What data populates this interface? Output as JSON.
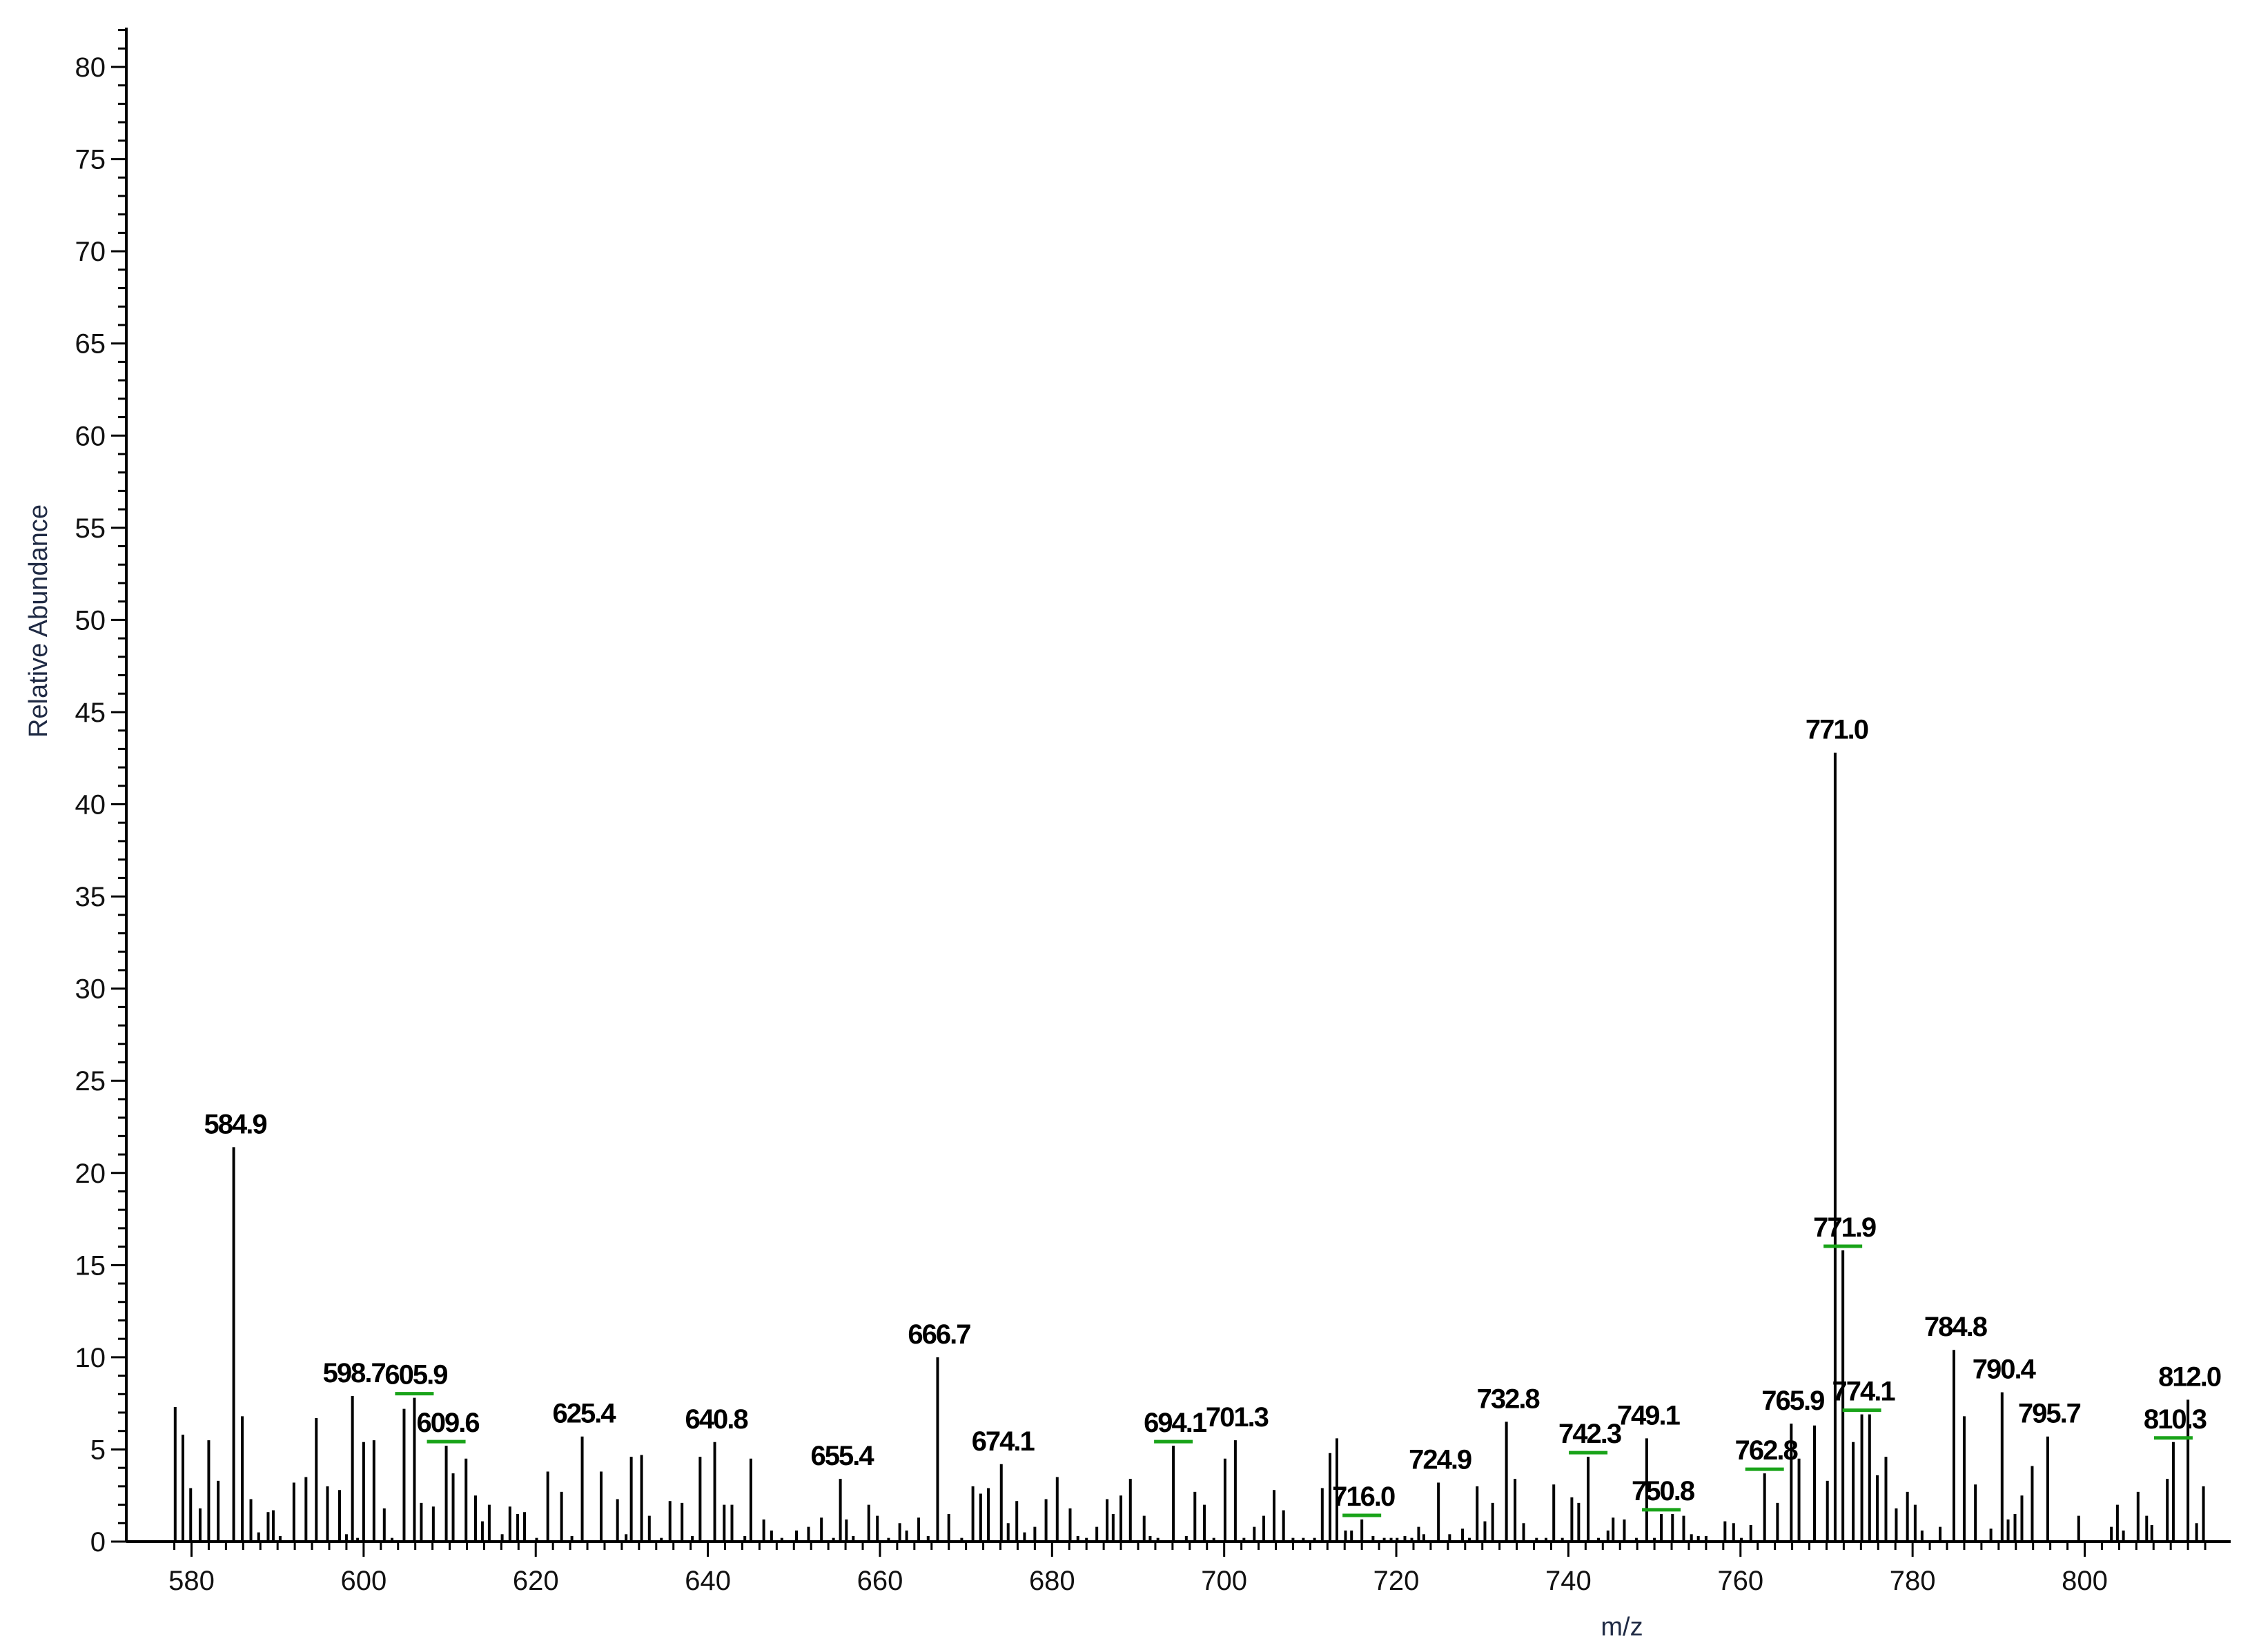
{
  "chart_data": {
    "type": "bar",
    "xlabel": "m/z",
    "ylabel": "Relative Abundance",
    "xlim": [
      577.5,
      815
    ],
    "ylim": [
      0,
      82
    ],
    "x_ticks": [
      580,
      600,
      620,
      640,
      660,
      680,
      700,
      720,
      740,
      760,
      780,
      800
    ],
    "x_tick_labels": [
      "580",
      "600",
      "620",
      "640",
      "660",
      "680",
      "700",
      "720",
      "740",
      "760",
      "780",
      "800"
    ],
    "y_ticks": [
      0,
      5,
      10,
      15,
      20,
      25,
      30,
      35,
      40,
      45,
      50,
      55,
      60,
      65,
      70,
      75,
      80
    ],
    "y_tick_labels": [
      "0",
      "5",
      "10",
      "15",
      "20",
      "25",
      "30",
      "35",
      "40",
      "45",
      "50",
      "55",
      "60",
      "65",
      "70",
      "75",
      "80"
    ],
    "labeled_peaks": [
      {
        "mz": 584.9,
        "abundance": 21.4,
        "label": "584.9",
        "marker": false
      },
      {
        "mz": 598.7,
        "abundance": 7.9,
        "label": "598.7",
        "marker": false
      },
      {
        "mz": 605.9,
        "abundance": 7.8,
        "label": "605.9",
        "marker": true
      },
      {
        "mz": 609.6,
        "abundance": 5.2,
        "label": "609.6",
        "marker": true
      },
      {
        "mz": 625.4,
        "abundance": 5.7,
        "label": "625.4",
        "marker": false
      },
      {
        "mz": 640.8,
        "abundance": 5.4,
        "label": "640.8",
        "marker": false
      },
      {
        "mz": 655.4,
        "abundance": 3.4,
        "label": "655.4",
        "marker": false
      },
      {
        "mz": 666.7,
        "abundance": 10.0,
        "label": "666.7",
        "marker": false
      },
      {
        "mz": 674.1,
        "abundance": 4.2,
        "label": "674.1",
        "marker": false
      },
      {
        "mz": 694.1,
        "abundance": 5.2,
        "label": "694.1",
        "marker": true
      },
      {
        "mz": 701.3,
        "abundance": 5.5,
        "label": "701.3",
        "marker": false
      },
      {
        "mz": 716.0,
        "abundance": 1.2,
        "label": "716.0",
        "marker": true
      },
      {
        "mz": 724.9,
        "abundance": 3.2,
        "label": "724.9",
        "marker": false
      },
      {
        "mz": 732.8,
        "abundance": 6.5,
        "label": "732.8",
        "marker": false
      },
      {
        "mz": 742.3,
        "abundance": 4.6,
        "label": "742.3",
        "marker": true
      },
      {
        "mz": 749.1,
        "abundance": 5.6,
        "label": "749.1",
        "marker": false
      },
      {
        "mz": 750.8,
        "abundance": 1.5,
        "label": "750.8",
        "marker": true
      },
      {
        "mz": 762.8,
        "abundance": 3.7,
        "label": "762.8",
        "marker": true
      },
      {
        "mz": 765.9,
        "abundance": 6.4,
        "label": "765.9",
        "marker": false
      },
      {
        "mz": 771.0,
        "abundance": 42.8,
        "label": "771.0",
        "marker": false
      },
      {
        "mz": 771.9,
        "abundance": 15.8,
        "label": "771.9",
        "marker": true
      },
      {
        "mz": 774.1,
        "abundance": 6.9,
        "label": "774.1",
        "marker": true
      },
      {
        "mz": 784.8,
        "abundance": 10.4,
        "label": "784.8",
        "marker": false
      },
      {
        "mz": 790.4,
        "abundance": 8.1,
        "label": "790.4",
        "marker": false
      },
      {
        "mz": 795.7,
        "abundance": 5.7,
        "label": "795.7",
        "marker": false
      },
      {
        "mz": 810.3,
        "abundance": 5.4,
        "label": "810.3",
        "marker": true
      },
      {
        "mz": 812.0,
        "abundance": 7.7,
        "label": "812.0",
        "marker": false
      }
    ],
    "peaks": [
      [
        578.1,
        7.3
      ],
      [
        579.0,
        5.8
      ],
      [
        579.9,
        2.9
      ],
      [
        581.0,
        1.8
      ],
      [
        582.0,
        5.5
      ],
      [
        583.1,
        3.3
      ],
      [
        585.9,
        6.8
      ],
      [
        586.9,
        2.3
      ],
      [
        587.8,
        0.5
      ],
      [
        588.9,
        1.6
      ],
      [
        589.5,
        1.7
      ],
      [
        590.3,
        0.3
      ],
      [
        591.9,
        3.2
      ],
      [
        593.3,
        3.5
      ],
      [
        594.5,
        6.7
      ],
      [
        595.8,
        3.0
      ],
      [
        597.2,
        2.8
      ],
      [
        598.0,
        0.4
      ],
      [
        599.3,
        0.2
      ],
      [
        600.0,
        5.4
      ],
      [
        601.2,
        5.5
      ],
      [
        602.4,
        1.8
      ],
      [
        603.3,
        0.2
      ],
      [
        604.7,
        7.2
      ],
      [
        606.7,
        2.1
      ],
      [
        608.1,
        1.9
      ],
      [
        610.4,
        3.7
      ],
      [
        611.9,
        4.5
      ],
      [
        613.0,
        2.5
      ],
      [
        613.8,
        1.1
      ],
      [
        614.6,
        2.0
      ],
      [
        616.1,
        0.4
      ],
      [
        617.0,
        1.9
      ],
      [
        617.9,
        1.5
      ],
      [
        618.7,
        1.6
      ],
      [
        620.1,
        0.2
      ],
      [
        621.4,
        3.8
      ],
      [
        623.0,
        2.7
      ],
      [
        624.2,
        0.3
      ],
      [
        627.6,
        3.8
      ],
      [
        629.5,
        2.3
      ],
      [
        630.5,
        0.4
      ],
      [
        631.1,
        4.6
      ],
      [
        632.3,
        4.7
      ],
      [
        633.2,
        1.4
      ],
      [
        634.6,
        0.2
      ],
      [
        635.6,
        2.2
      ],
      [
        637.0,
        2.1
      ],
      [
        638.2,
        0.3
      ],
      [
        639.1,
        4.6
      ],
      [
        641.9,
        2.0
      ],
      [
        642.8,
        2.0
      ],
      [
        644.3,
        0.3
      ],
      [
        645.0,
        4.5
      ],
      [
        646.5,
        1.2
      ],
      [
        647.4,
        0.6
      ],
      [
        648.6,
        0.2
      ],
      [
        650.3,
        0.6
      ],
      [
        651.7,
        0.8
      ],
      [
        653.2,
        1.3
      ],
      [
        654.6,
        0.2
      ],
      [
        656.1,
        1.2
      ],
      [
        656.9,
        0.3
      ],
      [
        658.7,
        2.0
      ],
      [
        659.7,
        1.4
      ],
      [
        661.0,
        0.2
      ],
      [
        662.3,
        1.0
      ],
      [
        663.1,
        0.6
      ],
      [
        664.5,
        1.3
      ],
      [
        665.6,
        0.3
      ],
      [
        668.0,
        1.5
      ],
      [
        669.5,
        0.2
      ],
      [
        670.8,
        3.0
      ],
      [
        671.7,
        2.6
      ],
      [
        672.6,
        2.9
      ],
      [
        674.9,
        1.0
      ],
      [
        675.9,
        2.2
      ],
      [
        676.8,
        0.5
      ],
      [
        678.0,
        0.8
      ],
      [
        679.3,
        2.3
      ],
      [
        680.6,
        3.5
      ],
      [
        682.1,
        1.8
      ],
      [
        683.0,
        0.3
      ],
      [
        684.0,
        0.2
      ],
      [
        685.2,
        0.8
      ],
      [
        686.4,
        2.3
      ],
      [
        687.1,
        1.5
      ],
      [
        688.0,
        2.5
      ],
      [
        689.1,
        3.4
      ],
      [
        690.7,
        1.4
      ],
      [
        691.4,
        0.3
      ],
      [
        692.3,
        0.2
      ],
      [
        695.6,
        0.3
      ],
      [
        696.6,
        2.7
      ],
      [
        697.7,
        2.0
      ],
      [
        698.8,
        0.2
      ],
      [
        700.1,
        4.5
      ],
      [
        702.3,
        0.2
      ],
      [
        703.5,
        0.8
      ],
      [
        704.6,
        1.4
      ],
      [
        705.8,
        2.8
      ],
      [
        706.9,
        1.7
      ],
      [
        708.0,
        0.2
      ],
      [
        709.2,
        0.2
      ],
      [
        710.5,
        0.2
      ],
      [
        711.4,
        2.9
      ],
      [
        712.3,
        4.8
      ],
      [
        713.1,
        5.6
      ],
      [
        714.1,
        0.6
      ],
      [
        714.8,
        0.6
      ],
      [
        717.3,
        0.3
      ],
      [
        718.6,
        0.2
      ],
      [
        719.4,
        0.2
      ],
      [
        720.1,
        0.2
      ],
      [
        721.0,
        0.3
      ],
      [
        721.8,
        0.2
      ],
      [
        722.6,
        0.8
      ],
      [
        723.2,
        0.4
      ],
      [
        726.2,
        0.4
      ],
      [
        727.7,
        0.7
      ],
      [
        728.5,
        0.2
      ],
      [
        729.4,
        3.0
      ],
      [
        730.3,
        1.1
      ],
      [
        731.2,
        2.1
      ],
      [
        733.8,
        3.4
      ],
      [
        734.8,
        1.0
      ],
      [
        736.3,
        0.2
      ],
      [
        737.4,
        0.2
      ],
      [
        738.3,
        3.1
      ],
      [
        739.3,
        0.2
      ],
      [
        740.4,
        2.4
      ],
      [
        741.2,
        2.1
      ],
      [
        743.5,
        0.2
      ],
      [
        744.6,
        0.6
      ],
      [
        745.2,
        1.3
      ],
      [
        746.5,
        1.2
      ],
      [
        747.9,
        0.2
      ],
      [
        750.0,
        0.2
      ],
      [
        752.1,
        1.5
      ],
      [
        753.4,
        1.4
      ],
      [
        754.3,
        0.4
      ],
      [
        755.1,
        0.3
      ],
      [
        756.0,
        0.3
      ],
      [
        758.2,
        1.1
      ],
      [
        759.2,
        1.0
      ],
      [
        760.1,
        0.2
      ],
      [
        761.2,
        0.9
      ],
      [
        764.3,
        2.1
      ],
      [
        766.8,
        4.5
      ],
      [
        768.6,
        6.3
      ],
      [
        770.1,
        3.3
      ],
      [
        773.1,
        5.4
      ],
      [
        775.0,
        6.9
      ],
      [
        775.9,
        3.6
      ],
      [
        776.9,
        4.6
      ],
      [
        778.1,
        1.8
      ],
      [
        779.4,
        2.7
      ],
      [
        780.3,
        2.0
      ],
      [
        781.1,
        0.6
      ],
      [
        783.2,
        0.8
      ],
      [
        786.0,
        6.8
      ],
      [
        787.3,
        3.1
      ],
      [
        789.1,
        0.7
      ],
      [
        791.1,
        1.2
      ],
      [
        791.9,
        1.5
      ],
      [
        792.7,
        2.5
      ],
      [
        793.9,
        4.1
      ],
      [
        799.3,
        1.4
      ],
      [
        803.1,
        0.8
      ],
      [
        803.8,
        2.0
      ],
      [
        804.5,
        0.6
      ],
      [
        806.2,
        2.7
      ],
      [
        807.2,
        1.4
      ],
      [
        807.8,
        0.9
      ],
      [
        809.6,
        3.4
      ],
      [
        813.0,
        1.0
      ],
      [
        813.8,
        3.0
      ]
    ],
    "colors": {
      "bars": "#000000",
      "axis": "#000000",
      "marker": "#19a319",
      "ylabel": "#1f2a44"
    }
  }
}
